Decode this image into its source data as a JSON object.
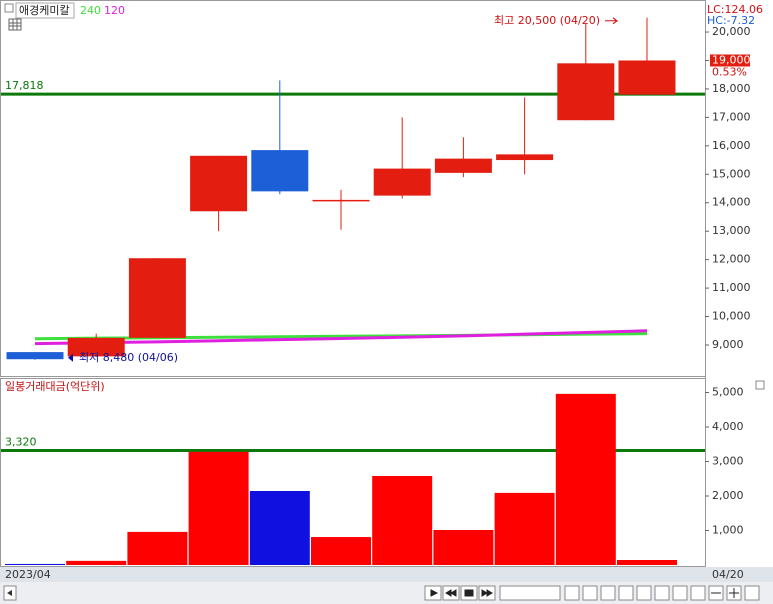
{
  "header": {
    "title": "애경케미칼"
  },
  "chart_data": [
    {
      "type": "candlestick",
      "categories": [
        null,
        null,
        null,
        null,
        null,
        null,
        null,
        null,
        null,
        null,
        null
      ],
      "open": [
        8750,
        8600,
        9250,
        13700,
        15850,
        14050,
        14250,
        15050,
        15500,
        16900,
        17800
      ],
      "high": [
        8750,
        9400,
        12050,
        15650,
        18300,
        14450,
        17000,
        16300,
        17700,
        20300,
        20500
      ],
      "low": [
        8480,
        8580,
        9250,
        13000,
        14300,
        13050,
        14150,
        14900,
        15000,
        16900,
        17800
      ],
      "close": [
        8500,
        9250,
        12050,
        15650,
        14400,
        14100,
        15200,
        15550,
        15700,
        18900,
        19000
      ],
      "up_color": "#e31e10",
      "down_color": "#1d5fd6",
      "series": [
        {
          "name": "240",
          "color": "#3ee03e",
          "values": [
            9220,
            9240,
            9255,
            9270,
            9290,
            9305,
            9320,
            9340,
            9360,
            9380,
            9400
          ]
        },
        {
          "name": "120",
          "color": "#e020e0",
          "values": [
            9050,
            9080,
            9110,
            9150,
            9190,
            9230,
            9270,
            9320,
            9380,
            9440,
            9500
          ]
        }
      ],
      "hlines": [
        {
          "value": 17818,
          "label": "17,818",
          "color": "#0b7a0b"
        }
      ],
      "ylim": [
        7910,
        20950
      ],
      "yticks": [
        {
          "value": 9000,
          "label": "9,000"
        },
        {
          "value": 10000,
          "label": "10,000"
        },
        {
          "value": 11000,
          "label": "11,000"
        },
        {
          "value": 12000,
          "label": "12,000"
        },
        {
          "value": 13000,
          "label": "13,000"
        },
        {
          "value": 14000,
          "label": "14,000"
        },
        {
          "value": 15000,
          "label": "15,000"
        },
        {
          "value": 16000,
          "label": "16,000"
        },
        {
          "value": 17000,
          "label": "17,000"
        },
        {
          "value": 18000,
          "label": "18,000"
        },
        {
          "value": 19000,
          "label": "19,000"
        },
        {
          "value": 20000,
          "label": "20,000"
        }
      ],
      "last_price": {
        "value": 19000,
        "label": "19,000"
      },
      "change": "0.53%",
      "corner_labels": [
        "LC:124.06",
        "HC:-7.32"
      ],
      "max_label": "최고 20,500 (04/20)",
      "min_label": "최저 8,480 (04/06)"
    },
    {
      "type": "bar",
      "title": "일봉거래대금(억단위)",
      "categories": [
        null,
        null,
        null,
        null,
        null,
        null,
        null,
        null,
        null,
        null,
        null
      ],
      "values": [
        30,
        120,
        960,
        3280,
        2145,
        810,
        2580,
        1015,
        2090,
        4960,
        145
      ],
      "colors": [
        "#1010e0",
        "#ff0000",
        "#ff0000",
        "#ff0000",
        "#1010e0",
        "#ff0000",
        "#ff0000",
        "#ff0000",
        "#ff0000",
        "#ff0000",
        "#ff0000"
      ],
      "hlines": [
        {
          "value": 3320,
          "label": "3,320",
          "color": "#0b7a0b"
        }
      ],
      "ylim": [
        0,
        5362
      ],
      "yticks": [
        {
          "value": 1000,
          "label": "1,000"
        },
        {
          "value": 2000,
          "label": "2,000"
        },
        {
          "value": 3000,
          "label": "3,000"
        },
        {
          "value": 4000,
          "label": "4,000"
        },
        {
          "value": 5000,
          "label": "5,000"
        }
      ],
      "x_labels": [
        "2023/04",
        "04/20"
      ]
    }
  ]
}
